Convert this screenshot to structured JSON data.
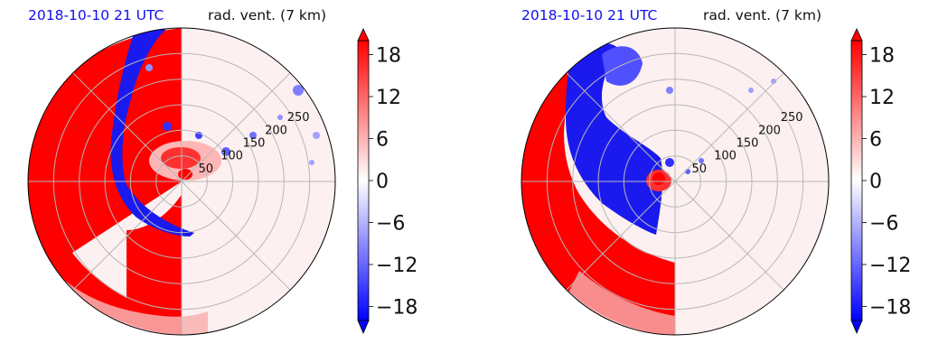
{
  "chart_data": [
    {
      "type": "polar-contourf",
      "title_left": "2018-10-10 21 UTC",
      "title_right": "rad. vent. (7 km)",
      "radial_ticks": [
        "50",
        "100",
        "150",
        "200",
        "250"
      ],
      "radial_max": 300,
      "colorbar": {
        "ticks": [
          "18",
          "12",
          "6",
          "0",
          "−6",
          "−12",
          "−18"
        ],
        "tick_values": [
          18,
          12,
          6,
          0,
          -6,
          -12,
          -18
        ],
        "range": [
          -20,
          20
        ],
        "extend": "both",
        "colormap": "bwr",
        "color_low": "#0000ff",
        "color_mid": "#ffffff",
        "color_high": "#ff0000"
      }
    },
    {
      "type": "polar-contourf",
      "title_left": "2018-10-10 21 UTC",
      "title_right": "rad. vent. (7 km)",
      "radial_ticks": [
        "50",
        "100",
        "150",
        "200",
        "250"
      ],
      "radial_max": 300,
      "colorbar": {
        "ticks": [
          "18",
          "12",
          "6",
          "0",
          "−6",
          "−12",
          "−18"
        ],
        "tick_values": [
          18,
          12,
          6,
          0,
          -6,
          -12,
          -18
        ],
        "range": [
          -20,
          20
        ],
        "extend": "both",
        "colormap": "bwr",
        "color_low": "#0000ff",
        "color_mid": "#ffffff",
        "color_high": "#ff0000"
      }
    }
  ]
}
